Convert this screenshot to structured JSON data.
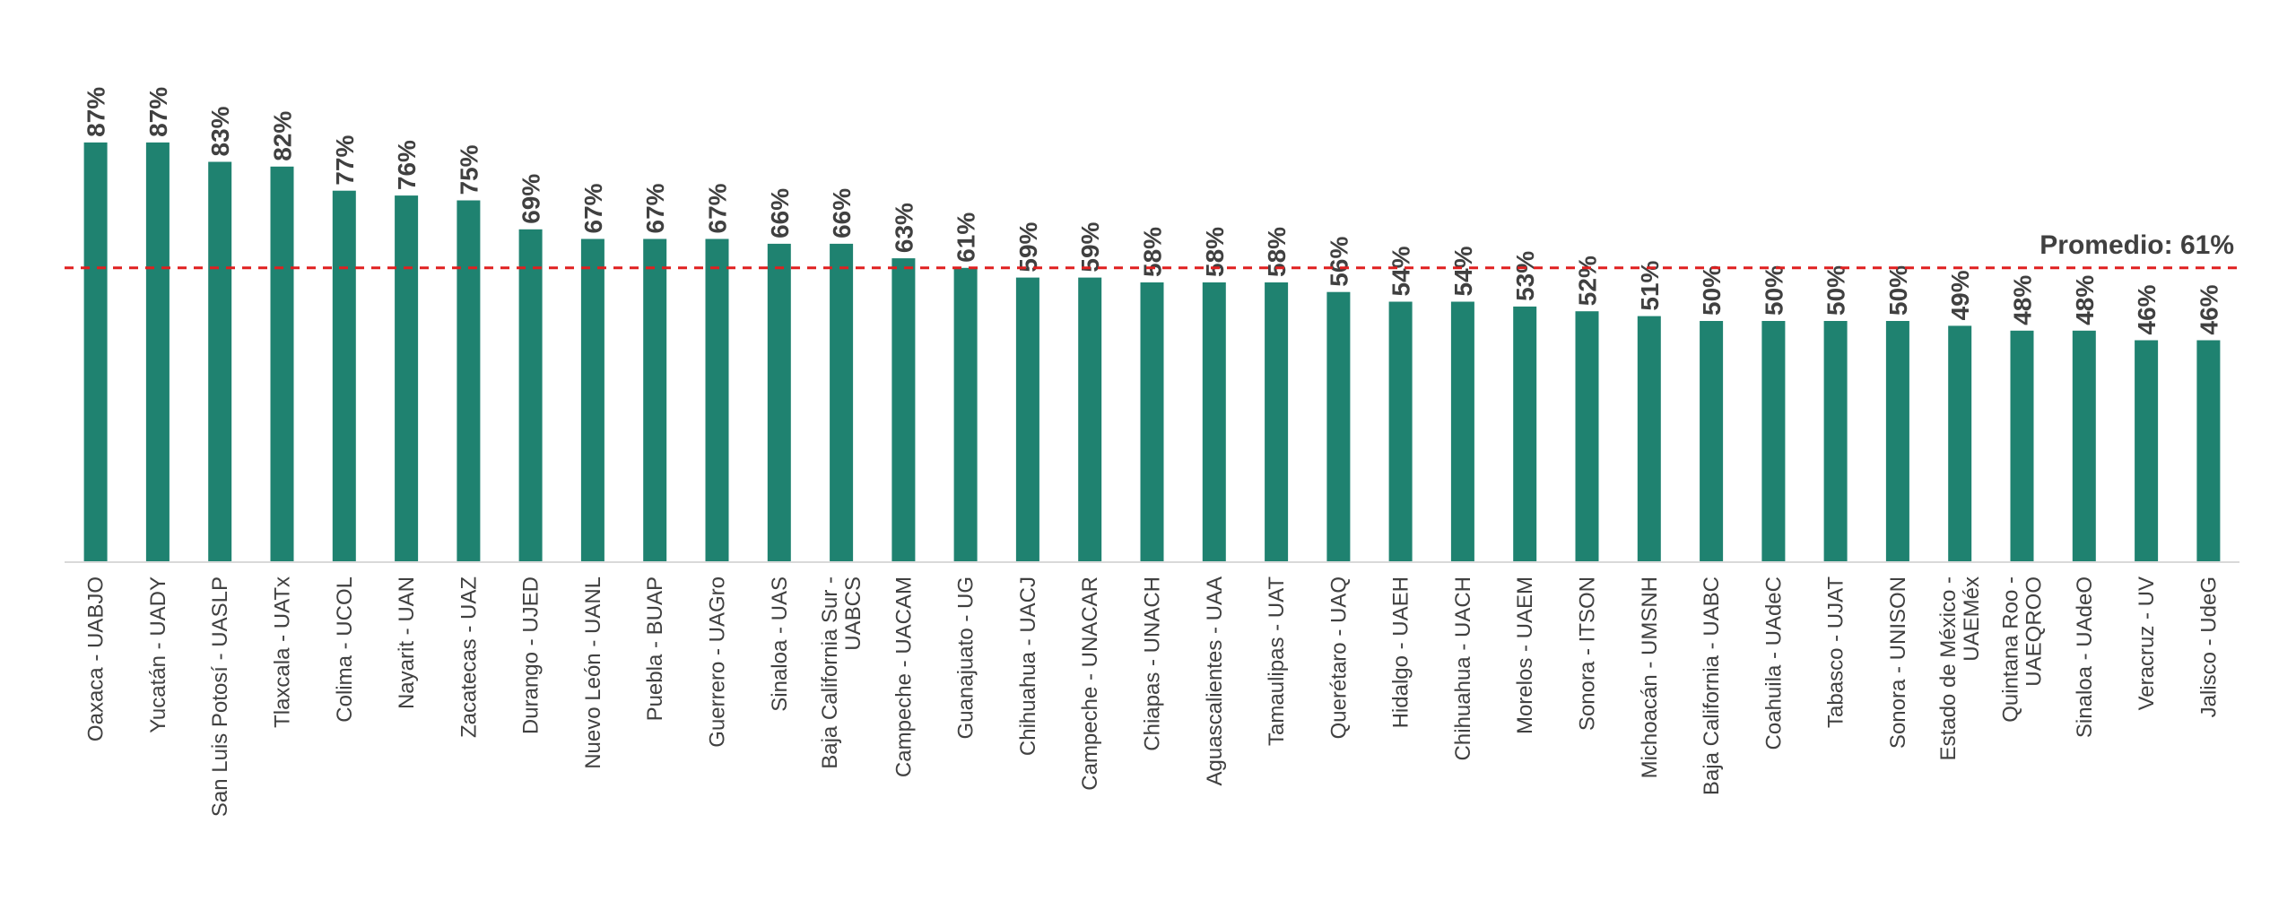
{
  "chart_data": {
    "type": "bar",
    "categories": [
      "Oaxaca - UABJO",
      "Yucatán - UADY",
      "San Luis Potosí - UASLP",
      "Tlaxcala - UATx",
      "Colima - UCOL",
      "Nayarit - UAN",
      "Zacatecas - UAZ",
      "Durango - UJED",
      "Nuevo León - UANL",
      "Puebla - BUAP",
      "Guerrero - UAGro",
      "Sinaloa - UAS",
      "Baja California Sur - UABCS",
      "Campeche - UACAM",
      "Guanajuato - UG",
      "Chihuahua - UACJ",
      "Campeche - UNACAR",
      "Chiapas - UNACH",
      "Aguascalientes - UAA",
      "Tamaulipas - UAT",
      "Querétaro - UAQ",
      "Hidalgo - UAEH",
      "Chihuahua - UACH",
      "Morelos - UAEM",
      "Sonora - ITSON",
      "Michoacán - UMSNH",
      "Baja California - UABC",
      "Coahuila - UAdeC",
      "Tabasco - UJAT",
      "Sonora - UNISON",
      "Estado de México - UAEMéx",
      "Quintana Roo - UAEQROO",
      "Sinaloa - UAdeO",
      "Veracruz - UV",
      "Jalisco - UdeG"
    ],
    "category_lines": [
      [
        "Oaxaca - UABJO"
      ],
      [
        "Yucatán - UADY"
      ],
      [
        "San Luis Potosí - UASLP"
      ],
      [
        "Tlaxcala - UATx"
      ],
      [
        "Colima - UCOL"
      ],
      [
        "Nayarit - UAN"
      ],
      [
        "Zacatecas - UAZ"
      ],
      [
        "Durango - UJED"
      ],
      [
        "Nuevo León - UANL"
      ],
      [
        "Puebla - BUAP"
      ],
      [
        "Guerrero - UAGro"
      ],
      [
        "Sinaloa - UAS"
      ],
      [
        "Baja California Sur -",
        "UABCS"
      ],
      [
        "Campeche - UACAM"
      ],
      [
        "Guanajuato - UG"
      ],
      [
        "Chihuahua - UACJ"
      ],
      [
        "Campeche - UNACAR"
      ],
      [
        "Chiapas - UNACH"
      ],
      [
        "Aguascalientes - UAA"
      ],
      [
        "Tamaulipas - UAT"
      ],
      [
        "Querétaro - UAQ"
      ],
      [
        "Hidalgo - UAEH"
      ],
      [
        "Chihuahua - UACH"
      ],
      [
        "Morelos - UAEM"
      ],
      [
        "Sonora - ITSON"
      ],
      [
        "Michoacán - UMSNH"
      ],
      [
        "Baja California - UABC"
      ],
      [
        "Coahuila - UAdeC"
      ],
      [
        "Tabasco - UJAT"
      ],
      [
        "Sonora - UNISON"
      ],
      [
        "Estado de México -",
        "UAEMéx"
      ],
      [
        "Quintana Roo -",
        "UAEQROO"
      ],
      [
        "Sinaloa - UAdeO"
      ],
      [
        "Veracruz - UV"
      ],
      [
        "Jalisco - UdeG"
      ]
    ],
    "values": [
      87,
      87,
      83,
      82,
      77,
      76,
      75,
      69,
      67,
      67,
      67,
      66,
      66,
      63,
      61,
      59,
      59,
      58,
      58,
      58,
      56,
      54,
      54,
      53,
      52,
      51,
      50,
      50,
      50,
      50,
      49,
      48,
      48,
      46,
      46
    ],
    "value_labels": [
      "87%",
      "87%",
      "83%",
      "82%",
      "77%",
      "76%",
      "75%",
      "69%",
      "67%",
      "67%",
      "67%",
      "66%",
      "66%",
      "63%",
      "61%",
      "59%",
      "59%",
      "58%",
      "58%",
      "58%",
      "56%",
      "54%",
      "54%",
      "53%",
      "52%",
      "51%",
      "50%",
      "50%",
      "50%",
      "50%",
      "49%",
      "48%",
      "48%",
      "46%",
      "46%"
    ],
    "reference_line": {
      "value": 61,
      "label": "Promedio: 61%"
    },
    "title": "",
    "xlabel": "",
    "ylabel": "",
    "ylim": [
      0,
      100
    ],
    "grid": false,
    "colors": {
      "bar": "#1f8270",
      "reference_line": "#e02020",
      "text": "#404040",
      "baseline": "#d9d9d9"
    }
  }
}
